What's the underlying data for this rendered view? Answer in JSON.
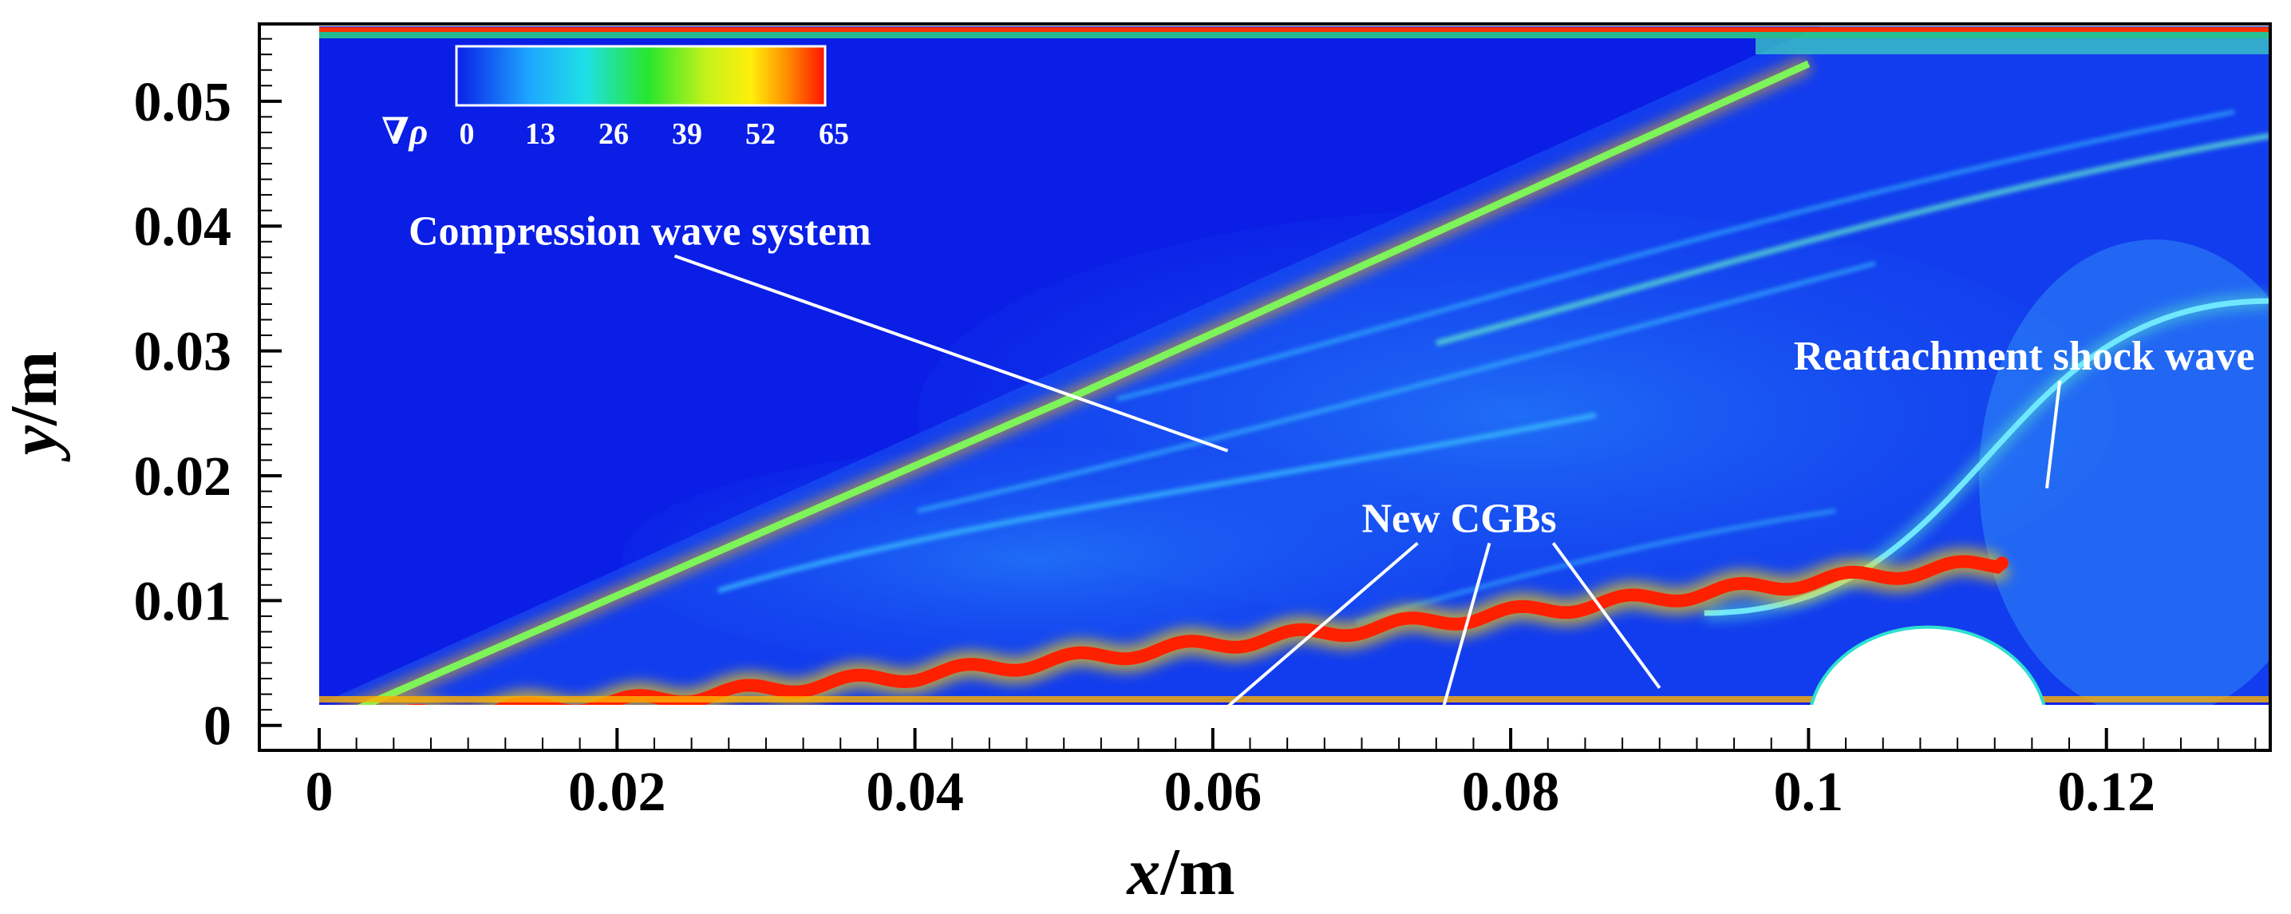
{
  "chart_data": {
    "type": "heatmap",
    "title": "",
    "xlabel_italic": "x",
    "xlabel_unit": "/m",
    "ylabel_italic": "y",
    "ylabel_unit": "/m",
    "xlim": [
      0,
      0.131
    ],
    "ylim": [
      -0.002,
      0.056
    ],
    "x_ticks": [
      {
        "value": 0,
        "label": "0"
      },
      {
        "value": 0.02,
        "label": "0.02"
      },
      {
        "value": 0.04,
        "label": "0.04"
      },
      {
        "value": 0.06,
        "label": "0.06"
      },
      {
        "value": 0.08,
        "label": "0.08"
      },
      {
        "value": 0.1,
        "label": "0.1"
      },
      {
        "value": 0.12,
        "label": "0.12"
      }
    ],
    "y_ticks": [
      {
        "value": 0,
        "label": "0"
      },
      {
        "value": 0.01,
        "label": "0.01"
      },
      {
        "value": 0.02,
        "label": "0.02"
      },
      {
        "value": 0.03,
        "label": "0.03"
      },
      {
        "value": 0.04,
        "label": "0.04"
      },
      {
        "value": 0.05,
        "label": "0.05"
      }
    ],
    "colorbar": {
      "variable": "∇ρ",
      "range": [
        0,
        65
      ],
      "ticks": [
        "0",
        "13",
        "26",
        "39",
        "52",
        "65"
      ],
      "location": "top-left"
    },
    "flow_domain": {
      "x_range": [
        0,
        0.131
      ],
      "y_range": [
        0,
        0.055
      ],
      "wall_bump_center_x": 0.108,
      "wall_bump_radius": 0.008
    },
    "features": {
      "shear_layer": [
        [
          0.003,
          0.0005
        ],
        [
          0.02,
          0.0018
        ],
        [
          0.04,
          0.004
        ],
        [
          0.06,
          0.0065
        ],
        [
          0.08,
          0.009
        ],
        [
          0.1,
          0.0115
        ],
        [
          0.113,
          0.013
        ]
      ],
      "oblique_shock": [
        [
          0.0,
          0.0
        ],
        [
          0.05,
          0.026
        ],
        [
          0.1,
          0.053
        ]
      ],
      "reattachment_shock": [
        [
          0.093,
          0.009
        ],
        [
          0.131,
          0.034
        ]
      ]
    },
    "annotations": [
      {
        "text": "Compression wave system",
        "label_at": [
          0.006,
          0.0385
        ],
        "points_to": [
          0.061,
          0.022
        ]
      },
      {
        "text": "Reattachment shock wave",
        "label_at": [
          0.099,
          0.0285
        ],
        "points_to": [
          0.116,
          0.019
        ]
      },
      {
        "text": "New CGBs",
        "label_at": [
          0.07,
          0.0155
        ],
        "points_to": [
          [
            0.061,
            0.0015
          ],
          [
            0.0755,
            0.0015
          ],
          [
            0.09,
            0.003
          ]
        ]
      }
    ],
    "colors": {
      "background": "#0a1ee6",
      "shear": "#ff2000",
      "shock": "#7cf45a"
    }
  }
}
